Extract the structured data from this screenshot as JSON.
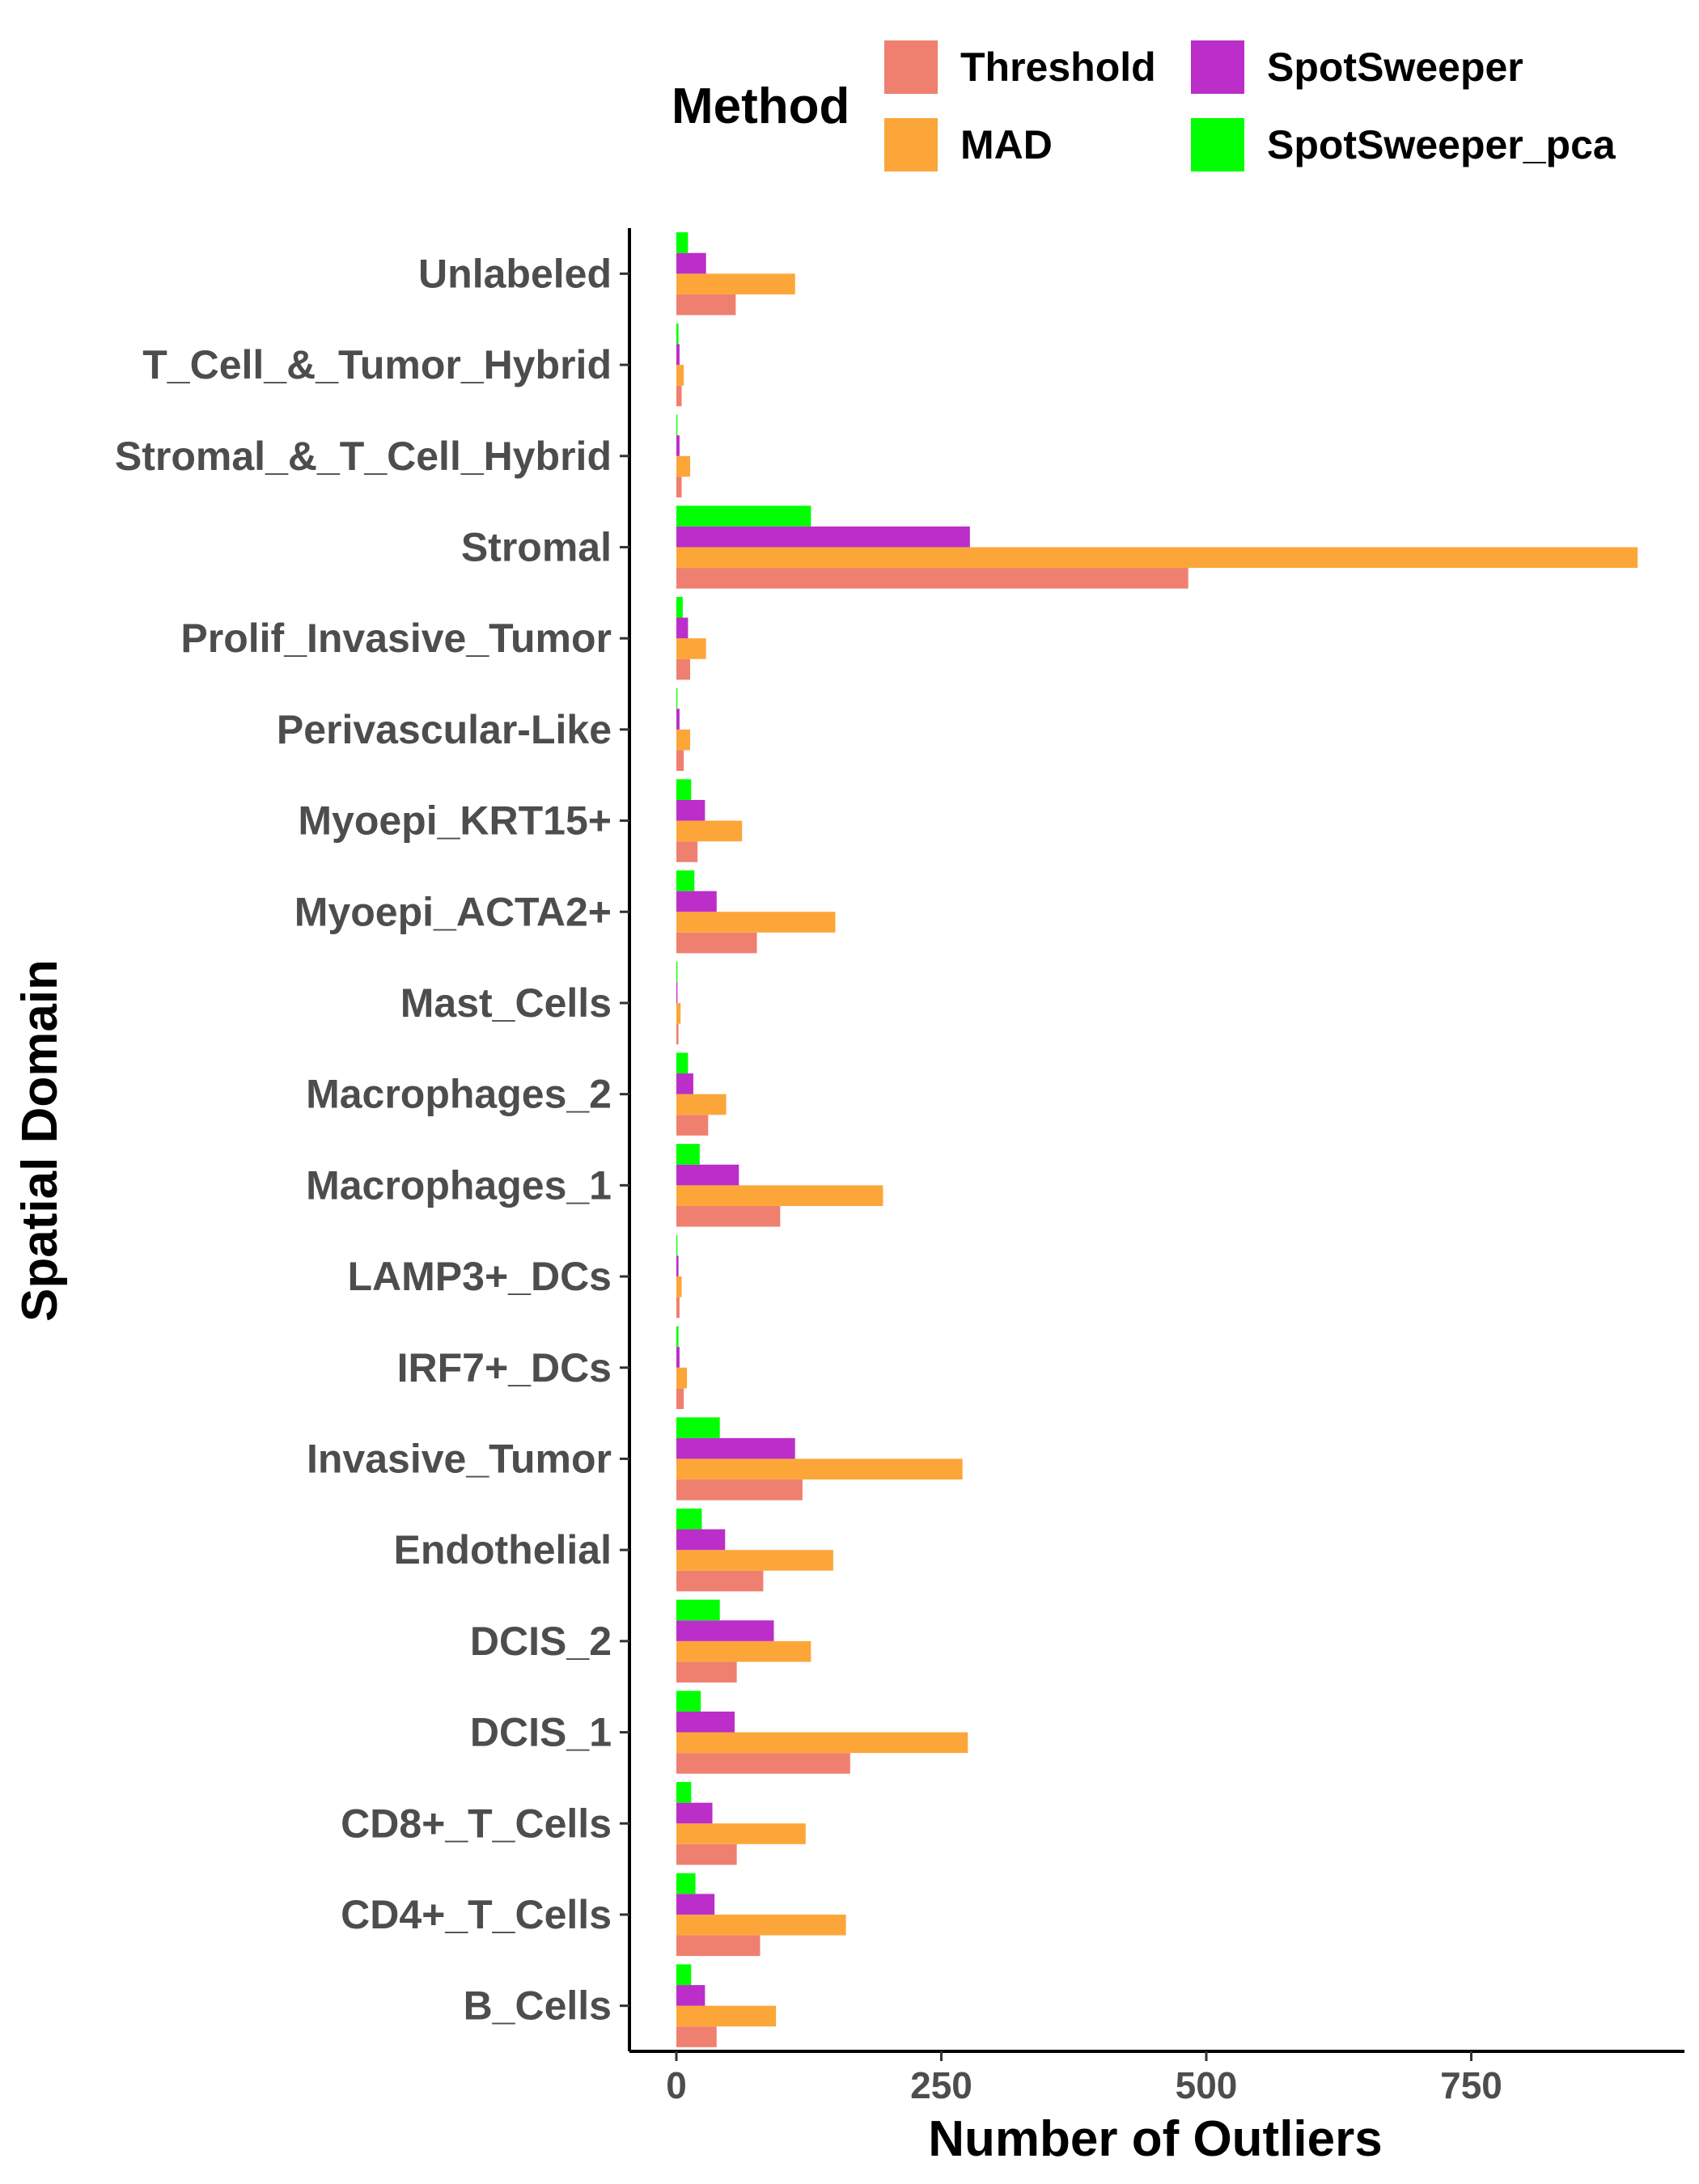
{
  "chart_data": {
    "type": "bar",
    "orientation": "horizontal",
    "xlabel": "Number of Outliers",
    "ylabel": "Spatial Domain",
    "legend": {
      "title": "Method",
      "placement": "top"
    },
    "categories": [
      "Unlabeled",
      "T_Cell_&_Tumor_Hybrid",
      "Stromal_&_T_Cell_Hybrid",
      "Stromal",
      "Prolif_Invasive_Tumor",
      "Perivascular-Like",
      "Myoepi_KRT15+",
      "Myoepi_ACTA2+",
      "Mast_Cells",
      "Macrophages_2",
      "Macrophages_1",
      "LAMP3+_DCs",
      "IRF7+_DCs",
      "Invasive_Tumor",
      "Endothelial",
      "DCIS_2",
      "DCIS_1",
      "CD8+_T_Cells",
      "CD4+_T_Cells",
      "B_Cells"
    ],
    "xlim": [
      -9,
      945
    ],
    "x_ticks": [
      0,
      250,
      500,
      750
    ],
    "x_tick_labels": [
      "0",
      "250",
      "500",
      "750"
    ],
    "grid": false,
    "series": [
      {
        "name": "Threshold",
        "color": "#EF8070",
        "values": [
          56,
          5,
          5,
          483,
          13,
          7,
          20,
          76,
          2,
          30,
          98,
          3,
          7,
          119,
          82,
          57,
          164,
          57,
          79,
          38
        ]
      },
      {
        "name": "MAD",
        "color": "#FCA63A",
        "values": [
          112,
          7,
          13,
          907,
          28,
          13,
          62,
          150,
          4,
          47,
          195,
          5,
          10,
          270,
          148,
          127,
          275,
          122,
          160,
          94
        ]
      },
      {
        "name": "SpotSweeper",
        "color": "#BB2EC9",
        "values": [
          28,
          3,
          3,
          277,
          11,
          3,
          27,
          38,
          1,
          16,
          59,
          2,
          3,
          112,
          46,
          92,
          55,
          34,
          36,
          27
        ]
      },
      {
        "name": "SpotSweeper_pca",
        "color": "#00FF00",
        "values": [
          11,
          2,
          1,
          127,
          6,
          1,
          14,
          17,
          1,
          11,
          22,
          1,
          2,
          41,
          24,
          41,
          23,
          14,
          18,
          14
        ]
      }
    ]
  }
}
